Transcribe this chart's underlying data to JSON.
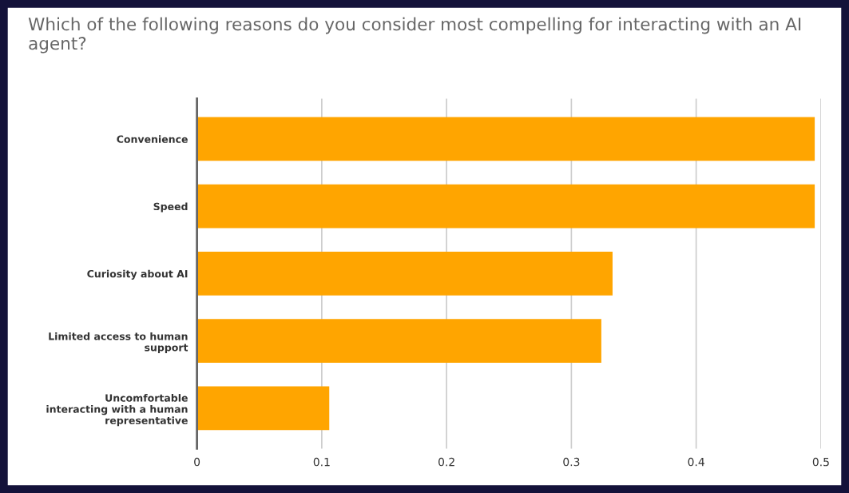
{
  "chart_data": {
    "type": "bar",
    "orientation": "horizontal",
    "title": "Which of the following reasons do you consider most compelling for interacting with an AI agent?",
    "categories": [
      "Convenience",
      "Speed",
      "Curiosity about AI",
      "Limited access to human\nsupport",
      "Uncomfortable\ninteracting with a human\nrepresentative"
    ],
    "values": [
      0.495,
      0.495,
      0.333,
      0.324,
      0.106
    ],
    "color": "#ffa500",
    "xlim": [
      0,
      0.5
    ],
    "xticks": [
      0,
      0.1,
      0.2,
      0.3,
      0.4,
      0.5
    ],
    "grid": "x",
    "legend": false
  }
}
